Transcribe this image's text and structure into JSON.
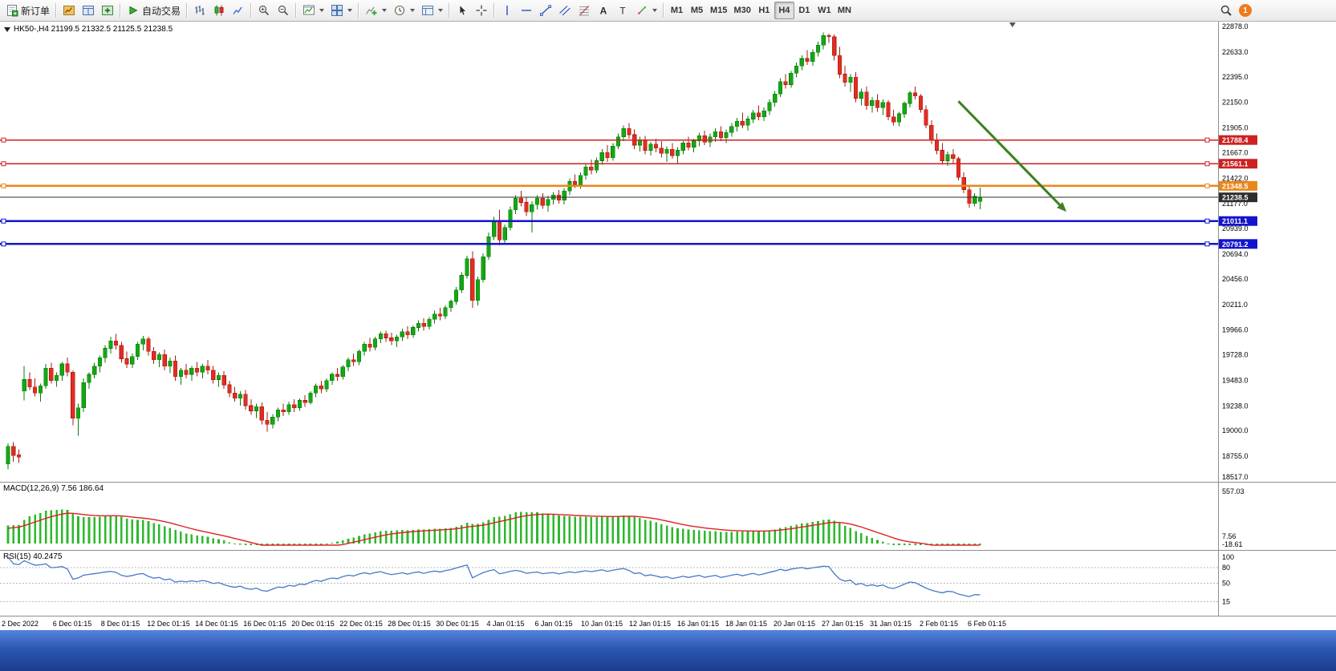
{
  "toolbar": {
    "new_order": {
      "label": "新订单",
      "icon": "new-order"
    },
    "panel_icons": [
      {
        "name": "market-watch-icon",
        "icon": "market-watch"
      },
      {
        "name": "data-window-icon",
        "icon": "data-window"
      },
      {
        "name": "navigator-icon",
        "icon": "navigator"
      }
    ],
    "autotrade": {
      "label": "自动交易",
      "icon": "autotrade"
    },
    "chart_type_icons": [
      {
        "name": "bar-chart-icon",
        "icon": "bars"
      },
      {
        "name": "candlestick-chart-icon",
        "icon": "candles"
      },
      {
        "name": "line-chart-icon",
        "icon": "linechart"
      }
    ],
    "zoom_icons": [
      {
        "name": "zoom-in-icon",
        "icon": "zoom-in"
      },
      {
        "name": "zoom-out-icon",
        "icon": "zoom-out"
      }
    ],
    "window_icons": [
      {
        "name": "new-chart-icon",
        "icon": "new-chart",
        "dropdown": true
      },
      {
        "name": "profiles-icon",
        "icon": "tile",
        "dropdown": true
      }
    ],
    "insert_icons": [
      {
        "name": "indicators-icon",
        "icon": "indicators",
        "dropdown": true
      },
      {
        "name": "periods-icon",
        "icon": "clock",
        "dropdown": true
      },
      {
        "name": "templates-icon",
        "icon": "template",
        "dropdown": true
      }
    ],
    "cursor_icons": [
      {
        "name": "cursor-icon",
        "icon": "cursor"
      },
      {
        "name": "crosshair-icon",
        "icon": "crosshair"
      }
    ],
    "draw_icons": [
      {
        "name": "vertical-line-icon",
        "icon": "vline"
      },
      {
        "name": "horizontal-line-icon",
        "icon": "hline"
      },
      {
        "name": "trendline-icon",
        "icon": "tline"
      },
      {
        "name": "equidistant-channel-icon",
        "icon": "channel"
      },
      {
        "name": "fibonacci-icon",
        "icon": "fibo"
      },
      {
        "name": "text-icon",
        "icon": "textA"
      },
      {
        "name": "text-label-icon",
        "icon": "textT"
      },
      {
        "name": "arrows-icon",
        "icon": "arrows",
        "dropdown": true
      }
    ],
    "timeframes": [
      "M1",
      "M5",
      "M15",
      "M30",
      "H1",
      "H4",
      "D1",
      "W1",
      "MN"
    ],
    "active_timeframe": "H4",
    "notification_count": "1"
  },
  "chart_data": {
    "type": "candlestick",
    "symbol": "HK50-",
    "timeframe": "H4",
    "header": "HK50-,H4  21199.5 21332.5 21125.5 21238.5",
    "current_ohlc": {
      "open": 21199.5,
      "high": 21332.5,
      "low": 21125.5,
      "close": 21238.5
    },
    "bull_color": "#12a912",
    "bull_border": "#0c7a0c",
    "bear_color": "#e22d22",
    "bear_border": "#a81b12",
    "y_axis_labels": [
      "22878.0",
      "22633.0",
      "22395.0",
      "22150.0",
      "21905.0",
      "21667.0",
      "21422.0",
      "21177.0",
      "20939.0",
      "20694.0",
      "20456.0",
      "20211.0",
      "19966.0",
      "19728.0",
      "19483.0",
      "19238.0",
      "19000.0",
      "18755.0",
      "18517.0"
    ],
    "x_axis_labels": [
      "2 Dec 2022",
      "6 Dec 01:15",
      "8 Dec 01:15",
      "12 Dec 01:15",
      "14 Dec 01:15",
      "16 Dec 01:15",
      "20 Dec 01:15",
      "22 Dec 01:15",
      "28 Dec 01:15",
      "30 Dec 01:15",
      "4 Jan 01:15",
      "6 Jan 01:15",
      "10 Jan 01:15",
      "12 Jan 01:15",
      "16 Jan 01:15",
      "18 Jan 01:15",
      "20 Jan 01:15",
      "27 Jan 01:15",
      "31 Jan 01:15",
      "2 Feb 01:15",
      "6 Feb 01:15"
    ],
    "horizontal_lines": [
      {
        "price": 21788.4,
        "label": "21788.4",
        "color": "#cc2222",
        "width": 1.6,
        "handles": true
      },
      {
        "price": 21561.1,
        "label": "21561.1",
        "color": "#cc2222",
        "width": 1.6,
        "handles": true
      },
      {
        "price": 21348.5,
        "label": "21348.5",
        "color": "#e8871a",
        "width": 2.4,
        "handles": true
      },
      {
        "price": 21238.5,
        "label": "21238.5",
        "color": "#2e2e2e",
        "width": 1.1,
        "handles": false
      },
      {
        "price": 21011.1,
        "label": "21011.1",
        "color": "#1414cc",
        "width": 2.2,
        "handles": true
      },
      {
        "price": 20791.2,
        "label": "20791.2",
        "color": "#1414cc",
        "width": 2.2,
        "handles": true
      }
    ],
    "trend_arrow": {
      "from_candle": 176,
      "from_price": 22160,
      "to_candle": 196,
      "to_price": 21100,
      "color": "#3e7f1f",
      "width": 3
    },
    "shift_marker_candle": 186,
    "candles": [
      [
        18680,
        18880,
        18630,
        18850
      ],
      [
        18850,
        18890,
        18700,
        18760
      ],
      [
        18770,
        18820,
        18690,
        18745
      ],
      [
        19380,
        19620,
        19290,
        19490
      ],
      [
        19490,
        19560,
        19390,
        19420
      ],
      [
        19420,
        19500,
        19330,
        19360
      ],
      [
        19360,
        19450,
        19280,
        19430
      ],
      [
        19430,
        19640,
        19400,
        19600
      ],
      [
        19600,
        19650,
        19450,
        19480
      ],
      [
        19480,
        19560,
        19420,
        19530
      ],
      [
        19530,
        19660,
        19480,
        19640
      ],
      [
        19640,
        19700,
        19520,
        19560
      ],
      [
        19560,
        19580,
        19050,
        19120
      ],
      [
        19120,
        19260,
        18950,
        19220
      ],
      [
        19220,
        19500,
        19180,
        19460
      ],
      [
        19460,
        19560,
        19400,
        19540
      ],
      [
        19540,
        19650,
        19500,
        19620
      ],
      [
        19620,
        19720,
        19560,
        19700
      ],
      [
        19700,
        19820,
        19650,
        19790
      ],
      [
        19790,
        19900,
        19740,
        19860
      ],
      [
        19860,
        19930,
        19780,
        19820
      ],
      [
        19820,
        19850,
        19650,
        19690
      ],
      [
        19690,
        19760,
        19600,
        19640
      ],
      [
        19640,
        19740,
        19600,
        19710
      ],
      [
        19710,
        19850,
        19680,
        19830
      ],
      [
        19830,
        19910,
        19770,
        19880
      ],
      [
        19880,
        19900,
        19720,
        19760
      ],
      [
        19760,
        19800,
        19640,
        19680
      ],
      [
        19680,
        19750,
        19610,
        19730
      ],
      [
        19730,
        19780,
        19580,
        19620
      ],
      [
        19620,
        19700,
        19550,
        19670
      ],
      [
        19670,
        19720,
        19480,
        19520
      ],
      [
        19520,
        19600,
        19440,
        19580
      ],
      [
        19580,
        19640,
        19500,
        19540
      ],
      [
        19540,
        19620,
        19480,
        19600
      ],
      [
        19600,
        19660,
        19520,
        19560
      ],
      [
        19560,
        19640,
        19500,
        19620
      ],
      [
        19620,
        19680,
        19540,
        19580
      ],
      [
        19580,
        19620,
        19450,
        19490
      ],
      [
        19490,
        19560,
        19420,
        19530
      ],
      [
        19530,
        19570,
        19400,
        19440
      ],
      [
        19440,
        19480,
        19320,
        19360
      ],
      [
        19360,
        19420,
        19280,
        19310
      ],
      [
        19310,
        19380,
        19240,
        19350
      ],
      [
        19350,
        19390,
        19200,
        19240
      ],
      [
        19240,
        19300,
        19150,
        19190
      ],
      [
        19190,
        19260,
        19120,
        19230
      ],
      [
        19230,
        19270,
        19060,
        19100
      ],
      [
        19100,
        19180,
        18990,
        19060
      ],
      [
        19060,
        19160,
        19020,
        19130
      ],
      [
        19130,
        19220,
        19090,
        19200
      ],
      [
        19200,
        19260,
        19140,
        19180
      ],
      [
        19180,
        19280,
        19150,
        19250
      ],
      [
        19250,
        19300,
        19180,
        19220
      ],
      [
        19220,
        19310,
        19190,
        19290
      ],
      [
        19290,
        19340,
        19230,
        19270
      ],
      [
        19270,
        19380,
        19250,
        19360
      ],
      [
        19360,
        19450,
        19320,
        19430
      ],
      [
        19430,
        19480,
        19360,
        19400
      ],
      [
        19400,
        19500,
        19370,
        19480
      ],
      [
        19480,
        19560,
        19440,
        19540
      ],
      [
        19540,
        19600,
        19480,
        19520
      ],
      [
        19520,
        19630,
        19490,
        19610
      ],
      [
        19610,
        19700,
        19570,
        19680
      ],
      [
        19680,
        19740,
        19620,
        19660
      ],
      [
        19660,
        19780,
        19630,
        19760
      ],
      [
        19760,
        19850,
        19720,
        19830
      ],
      [
        19830,
        19890,
        19760,
        19800
      ],
      [
        19800,
        19900,
        19770,
        19880
      ],
      [
        19880,
        19950,
        19840,
        19930
      ],
      [
        19930,
        19960,
        19850,
        19890
      ],
      [
        19890,
        19940,
        19820,
        19860
      ],
      [
        19860,
        19920,
        19800,
        19900
      ],
      [
        19900,
        19980,
        19860,
        19950
      ],
      [
        19950,
        20000,
        19880,
        19920
      ],
      [
        19920,
        20010,
        19890,
        19990
      ],
      [
        19990,
        20060,
        19950,
        20030
      ],
      [
        20030,
        20080,
        19960,
        20000
      ],
      [
        20000,
        20090,
        19970,
        20070
      ],
      [
        20070,
        20150,
        20030,
        20120
      ],
      [
        20120,
        20180,
        20060,
        20100
      ],
      [
        20100,
        20200,
        20070,
        20180
      ],
      [
        20180,
        20260,
        20140,
        20240
      ],
      [
        20240,
        20380,
        20210,
        20350
      ],
      [
        20350,
        20520,
        20320,
        20490
      ],
      [
        20490,
        20680,
        20460,
        20650
      ],
      [
        20650,
        20720,
        20180,
        20250
      ],
      [
        20250,
        20480,
        20200,
        20450
      ],
      [
        20450,
        20700,
        20420,
        20670
      ],
      [
        20670,
        20900,
        20640,
        20860
      ],
      [
        20860,
        21050,
        20830,
        21020
      ],
      [
        21020,
        21120,
        20780,
        20830
      ],
      [
        20830,
        20980,
        20800,
        20950
      ],
      [
        20950,
        21150,
        20920,
        21120
      ],
      [
        21120,
        21260,
        21080,
        21230
      ],
      [
        21230,
        21300,
        21150,
        21190
      ],
      [
        21190,
        21240,
        21060,
        21100
      ],
      [
        21100,
        21200,
        20900,
        21170
      ],
      [
        21170,
        21260,
        21120,
        21230
      ],
      [
        21230,
        21280,
        21130,
        21160
      ],
      [
        21160,
        21250,
        21100,
        21220
      ],
      [
        21220,
        21290,
        21170,
        21260
      ],
      [
        21260,
        21310,
        21180,
        21210
      ],
      [
        21210,
        21330,
        21170,
        21300
      ],
      [
        21300,
        21420,
        21260,
        21390
      ],
      [
        21390,
        21460,
        21330,
        21360
      ],
      [
        21360,
        21480,
        21320,
        21450
      ],
      [
        21450,
        21560,
        21410,
        21530
      ],
      [
        21530,
        21600,
        21460,
        21500
      ],
      [
        21500,
        21620,
        21470,
        21590
      ],
      [
        21590,
        21700,
        21550,
        21670
      ],
      [
        21670,
        21740,
        21580,
        21620
      ],
      [
        21620,
        21760,
        21590,
        21730
      ],
      [
        21730,
        21850,
        21700,
        21820
      ],
      [
        21820,
        21930,
        21780,
        21900
      ],
      [
        21900,
        21950,
        21800,
        21840
      ],
      [
        21840,
        21890,
        21700,
        21740
      ],
      [
        21740,
        21820,
        21680,
        21790
      ],
      [
        21790,
        21830,
        21650,
        21690
      ],
      [
        21690,
        21770,
        21640,
        21750
      ],
      [
        21750,
        21800,
        21670,
        21710
      ],
      [
        21710,
        21780,
        21620,
        21660
      ],
      [
        21660,
        21730,
        21580,
        21700
      ],
      [
        21700,
        21760,
        21610,
        21640
      ],
      [
        21640,
        21720,
        21560,
        21690
      ],
      [
        21690,
        21780,
        21650,
        21760
      ],
      [
        21760,
        21820,
        21690,
        21720
      ],
      [
        21720,
        21800,
        21670,
        21780
      ],
      [
        21780,
        21860,
        21730,
        21830
      ],
      [
        21830,
        21880,
        21740,
        21770
      ],
      [
        21770,
        21850,
        21720,
        21820
      ],
      [
        21820,
        21900,
        21770,
        21870
      ],
      [
        21870,
        21920,
        21780,
        21810
      ],
      [
        21810,
        21890,
        21760,
        21860
      ],
      [
        21860,
        21950,
        21820,
        21920
      ],
      [
        21920,
        22000,
        21870,
        21970
      ],
      [
        21970,
        22050,
        21900,
        21930
      ],
      [
        21930,
        22020,
        21880,
        21990
      ],
      [
        21990,
        22080,
        21950,
        22050
      ],
      [
        22050,
        22120,
        21980,
        22010
      ],
      [
        22010,
        22100,
        21970,
        22070
      ],
      [
        22070,
        22180,
        22030,
        22150
      ],
      [
        22150,
        22260,
        22110,
        22230
      ],
      [
        22230,
        22380,
        22200,
        22350
      ],
      [
        22350,
        22420,
        22280,
        22320
      ],
      [
        22320,
        22450,
        22290,
        22430
      ],
      [
        22430,
        22530,
        22390,
        22500
      ],
      [
        22500,
        22600,
        22460,
        22570
      ],
      [
        22570,
        22650,
        22510,
        22540
      ],
      [
        22540,
        22660,
        22500,
        22630
      ],
      [
        22630,
        22730,
        22590,
        22700
      ],
      [
        22700,
        22820,
        22660,
        22790
      ],
      [
        22790,
        22810,
        22720,
        22780
      ],
      [
        22780,
        22800,
        22550,
        22600
      ],
      [
        22600,
        22680,
        22380,
        22420
      ],
      [
        22420,
        22500,
        22300,
        22340
      ],
      [
        22340,
        22420,
        22250,
        22390
      ],
      [
        22390,
        22440,
        22150,
        22190
      ],
      [
        22190,
        22280,
        22120,
        22250
      ],
      [
        22250,
        22300,
        22080,
        22120
      ],
      [
        22120,
        22200,
        22050,
        22170
      ],
      [
        22170,
        22230,
        22060,
        22100
      ],
      [
        22100,
        22180,
        22030,
        22150
      ],
      [
        22150,
        22170,
        21980,
        22010
      ],
      [
        22010,
        22080,
        21930,
        21960
      ],
      [
        21960,
        22060,
        21920,
        22040
      ],
      [
        22040,
        22160,
        22000,
        22140
      ],
      [
        22140,
        22260,
        22100,
        22240
      ],
      [
        22240,
        22300,
        22180,
        22210
      ],
      [
        22210,
        22230,
        22050,
        22080
      ],
      [
        22080,
        22120,
        21900,
        21930
      ],
      [
        21930,
        21980,
        21750,
        21790
      ],
      [
        21790,
        21850,
        21650,
        21690
      ],
      [
        21690,
        21760,
        21550,
        21590
      ],
      [
        21590,
        21680,
        21540,
        21650
      ],
      [
        21650,
        21700,
        21560,
        21610
      ],
      [
        21610,
        21630,
        21400,
        21430
      ],
      [
        21430,
        21480,
        21280,
        21310
      ],
      [
        21310,
        21360,
        21140,
        21180
      ],
      [
        21180,
        21280,
        21150,
        21250
      ],
      [
        21199.5,
        21332.5,
        21125.5,
        21238.5
      ]
    ],
    "indicators": {
      "macd": {
        "label": "MACD(12,26,9) 7.56 186.64",
        "params": [
          12,
          26,
          9
        ],
        "value": 7.56,
        "signal_value": 186.64,
        "axis_labels": {
          "top": "557.03",
          "current": "7.56",
          "bottom": "-18.61"
        },
        "histogram_color": "#2db82d",
        "signal_color": "#e02020"
      },
      "rsi": {
        "label": "RSI(15) 40.2475",
        "period": 15,
        "value": 40.2475,
        "axis_labels": [
          "100",
          "80",
          "50",
          "15"
        ],
        "levels": [
          80,
          50,
          15
        ],
        "line_color": "#4878c8"
      }
    }
  }
}
